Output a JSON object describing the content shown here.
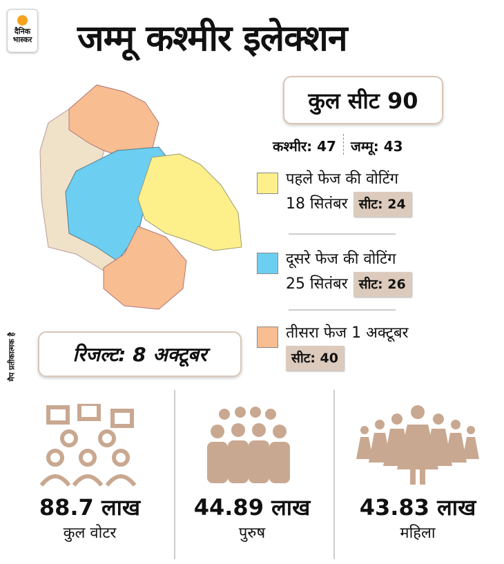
{
  "logo": {
    "line1": "दैनिक",
    "line2": "भास्कर"
  },
  "title": "जम्मू कश्मीर इलेक्शन",
  "total_seats": "कुल सीट 90",
  "split": {
    "kashmir": "कश्मीर: 47",
    "jammu": "जम्मू: 43"
  },
  "phases": [
    {
      "line1": "पहले फेज की वोटिंग",
      "line2": "18 सितंबर",
      "seats": "सीट: 24",
      "color": "#fdf08a"
    },
    {
      "line1": "दूसरे फेज की वोटिंग",
      "line2": "25 सितंबर",
      "seats": "सीट: 26",
      "color": "#6ccff1"
    },
    {
      "line1": "तीसरा फेज 1 अक्टूबर",
      "line2": "",
      "seats": "सीट: 40",
      "color": "#f9bd92"
    }
  ],
  "map_note": "मैप प्रतीकात्मक है",
  "result": "रिजल्ट: 8 अक्टूबर",
  "stats": [
    {
      "value": "88.7 लाख",
      "label": "कुल वोटर",
      "icon": "voters-icon"
    },
    {
      "value": "44.89 लाख",
      "label": "पुरुष",
      "icon": "men-icon"
    },
    {
      "value": "43.83 लाख",
      "label": "महिला",
      "icon": "women-icon"
    }
  ],
  "colors": {
    "other_region": "#f0e1c9",
    "icon": "#c9a891",
    "badge": "#dccbbd"
  }
}
